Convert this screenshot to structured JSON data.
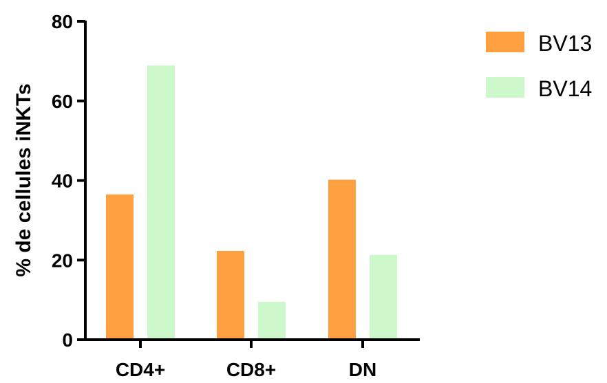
{
  "chart_data": {
    "type": "bar",
    "title": "",
    "xlabel": "",
    "ylabel": "% de cellules iNKTs",
    "ylim": [
      0,
      80
    ],
    "yticks": [
      0,
      20,
      40,
      60,
      80
    ],
    "categories": [
      "CD4+",
      "CD8+",
      "DN"
    ],
    "series": [
      {
        "name": "BV13",
        "color": "#FFA040",
        "values": [
          36.5,
          22.3,
          40.2
        ]
      },
      {
        "name": "BV14",
        "color": "#CCF8CC",
        "values": [
          68.9,
          9.5,
          21.3
        ]
      }
    ],
    "legend": "top-right",
    "grid": false
  }
}
